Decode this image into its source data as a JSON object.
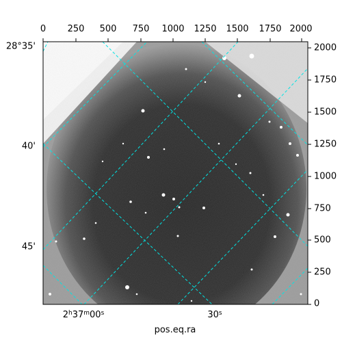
{
  "image": {
    "description_colormap": "grayscale",
    "grid_color": "#00e5e5",
    "frame_color": "#000000"
  },
  "axes": {
    "top_ticks": [
      "0",
      "250",
      "500",
      "750",
      "1000",
      "1250",
      "1500",
      "1750",
      "2000"
    ],
    "right_ticks": [
      "2000",
      "1750",
      "1500",
      "1250",
      "1000",
      "750",
      "500",
      "250",
      "0"
    ],
    "left_ticks": [
      "28°35'",
      "40'",
      "45'"
    ],
    "bottom_ticks": [
      {
        "main": "2",
        "s1": "h",
        "mid": "37",
        "s2": "m",
        "end": "00",
        "s3": "s"
      },
      {
        "main": "30",
        "s3": "s"
      }
    ],
    "xlabel": "pos.eq.ra"
  }
}
